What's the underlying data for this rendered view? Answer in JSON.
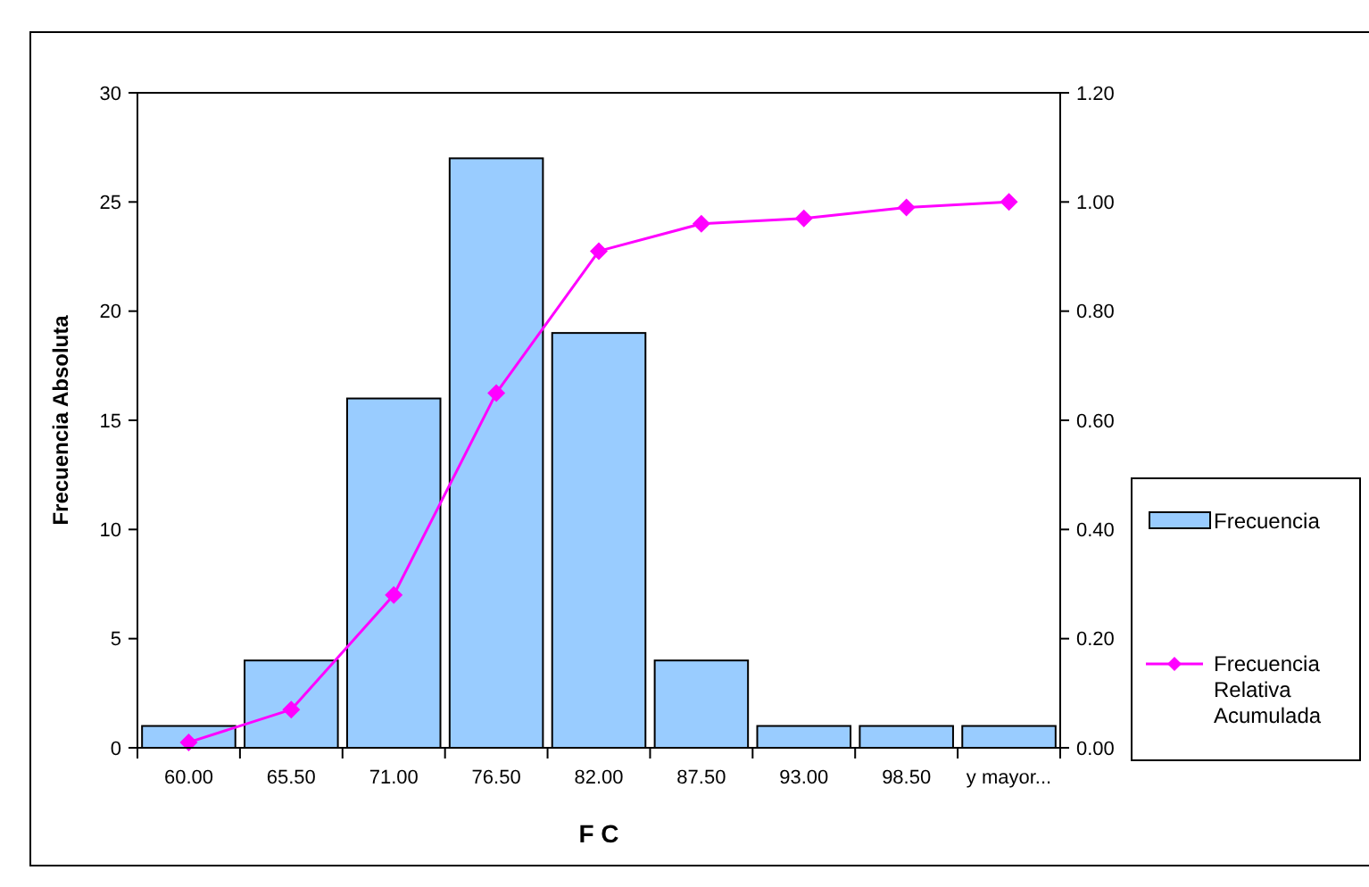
{
  "chart_data": {
    "type": "bar",
    "xlabel": "F C",
    "ylabel": "Frecuencia Absoluta",
    "categories": [
      "60.00",
      "65.50",
      "71.00",
      "76.50",
      "82.00",
      "87.50",
      "93.00",
      "98.50",
      "y mayor..."
    ],
    "series": [
      {
        "name": "Frecuencia",
        "color": "#99ccff",
        "values": [
          1,
          4,
          16,
          27,
          19,
          4,
          1,
          1,
          1
        ]
      },
      {
        "name": "Frecuencia Relativa Acumulada",
        "type": "line",
        "axis": "y2",
        "color": "#ff00ff",
        "marker": "diamond",
        "values": [
          0.01,
          0.07,
          0.28,
          0.65,
          0.91,
          0.96,
          0.97,
          0.99,
          1.0
        ]
      }
    ],
    "ylim": [
      0,
      30
    ],
    "yticks": [
      0,
      5,
      10,
      15,
      20,
      25,
      30
    ],
    "y2lim": [
      0,
      1.2
    ],
    "y2ticks": [
      {
        "value": 0,
        "label": "0.00"
      },
      {
        "value": 0.2,
        "label": "0.20"
      },
      {
        "value": 0.4,
        "label": "0.40"
      },
      {
        "value": 0.6,
        "label": "0.60"
      },
      {
        "value": 0.8,
        "label": "0.80"
      },
      {
        "value": 1.0,
        "label": "1.00"
      },
      {
        "value": 1.2,
        "label": "1.20"
      }
    ],
    "grid": false,
    "legend": "right"
  }
}
